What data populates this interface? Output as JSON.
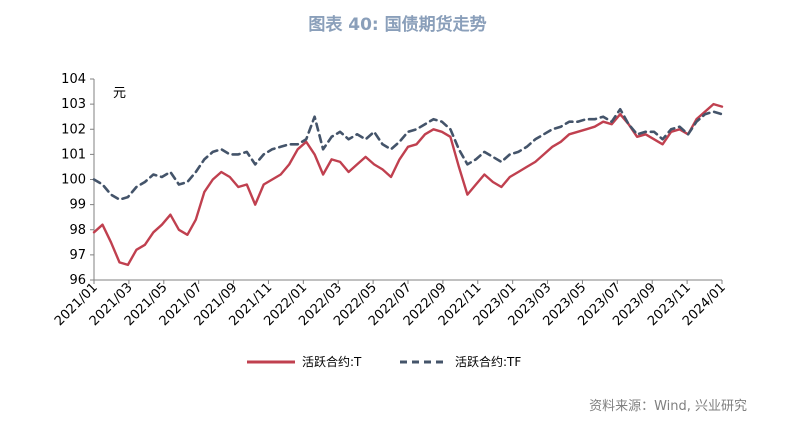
{
  "title": "图表 40: 国债期货走势",
  "source": "资料来源：Wind, 兴业研究",
  "chart_data": {
    "type": "line",
    "unit_label": "元",
    "ylim": [
      96,
      104
    ],
    "yticks": [
      "96",
      "97",
      "98",
      "99",
      "100",
      "101",
      "102",
      "103",
      "104"
    ],
    "xticks": [
      "2021/01",
      "2021/03",
      "2021/05",
      "2021/07",
      "2021/09",
      "2021/11",
      "2022/01",
      "2022/03",
      "2022/05",
      "2022/07",
      "2022/09",
      "2022/11",
      "2023/01",
      "2023/03",
      "2023/05",
      "2023/07",
      "2023/09",
      "2023/11",
      "2024/01"
    ],
    "x": [
      0,
      0.5,
      1,
      1.5,
      2,
      2.5,
      3,
      3.5,
      4,
      4.5,
      5,
      5.5,
      6,
      6.5,
      7,
      7.5,
      8,
      8.5,
      9,
      9.5,
      10,
      10.5,
      11,
      11.5,
      12,
      12.5,
      13,
      13.5,
      14,
      14.5,
      15,
      15.5,
      16,
      16.5,
      17,
      17.5,
      18,
      18.5,
      19,
      19.5,
      20,
      20.5,
      21,
      21.5,
      22,
      22.5,
      23,
      23.5,
      24,
      24.5,
      25,
      25.5,
      26,
      26.5,
      27,
      27.5,
      28,
      28.5,
      29,
      29.5,
      30,
      30.5,
      31,
      31.5,
      32,
      32.5,
      33,
      33.5,
      34,
      34.5,
      35,
      35.5,
      36,
      36.5,
      37
    ],
    "series": [
      {
        "name": "活跃合约:T",
        "color": "#c0404f",
        "dash": "solid",
        "values": [
          97.9,
          98.2,
          97.5,
          96.7,
          96.6,
          97.2,
          97.4,
          97.9,
          98.2,
          98.6,
          98.0,
          97.8,
          98.4,
          99.5,
          100.0,
          100.3,
          100.1,
          99.7,
          99.8,
          99.0,
          99.8,
          100.0,
          100.2,
          100.6,
          101.2,
          101.5,
          101.0,
          100.2,
          100.8,
          100.7,
          100.3,
          100.6,
          100.9,
          100.6,
          100.4,
          100.1,
          100.8,
          101.3,
          101.4,
          101.8,
          102.0,
          101.9,
          101.7,
          100.5,
          99.4,
          99.8,
          100.2,
          99.9,
          99.7,
          100.1,
          100.3,
          100.5,
          100.7,
          101.0,
          101.3,
          101.5,
          101.8,
          101.9,
          102.0,
          102.1,
          102.3,
          102.2,
          102.6,
          102.2,
          101.7,
          101.8,
          101.6,
          101.4,
          101.9,
          102.0,
          101.8,
          102.4,
          102.7,
          103.0,
          102.9
        ]
      },
      {
        "name": "活跃合约:TF",
        "color": "#44546a",
        "dash": "dashed",
        "values": [
          100.0,
          99.8,
          99.4,
          99.2,
          99.3,
          99.7,
          99.9,
          100.2,
          100.1,
          100.3,
          99.8,
          99.9,
          100.3,
          100.8,
          101.1,
          101.2,
          101.0,
          101.0,
          101.1,
          100.6,
          101.0,
          101.2,
          101.3,
          101.4,
          101.4,
          101.6,
          102.5,
          101.2,
          101.7,
          101.9,
          101.6,
          101.8,
          101.6,
          101.9,
          101.4,
          101.2,
          101.5,
          101.9,
          102.0,
          102.2,
          102.4,
          102.3,
          102.0,
          101.2,
          100.6,
          100.8,
          101.1,
          100.9,
          100.7,
          101.0,
          101.1,
          101.3,
          101.6,
          101.8,
          102.0,
          102.1,
          102.3,
          102.3,
          102.4,
          102.4,
          102.5,
          102.3,
          102.8,
          102.2,
          101.8,
          101.9,
          101.9,
          101.6,
          102.0,
          102.1,
          101.8,
          102.3,
          102.6,
          102.7,
          102.6
        ]
      }
    ],
    "legend_position": "bottom-center"
  }
}
